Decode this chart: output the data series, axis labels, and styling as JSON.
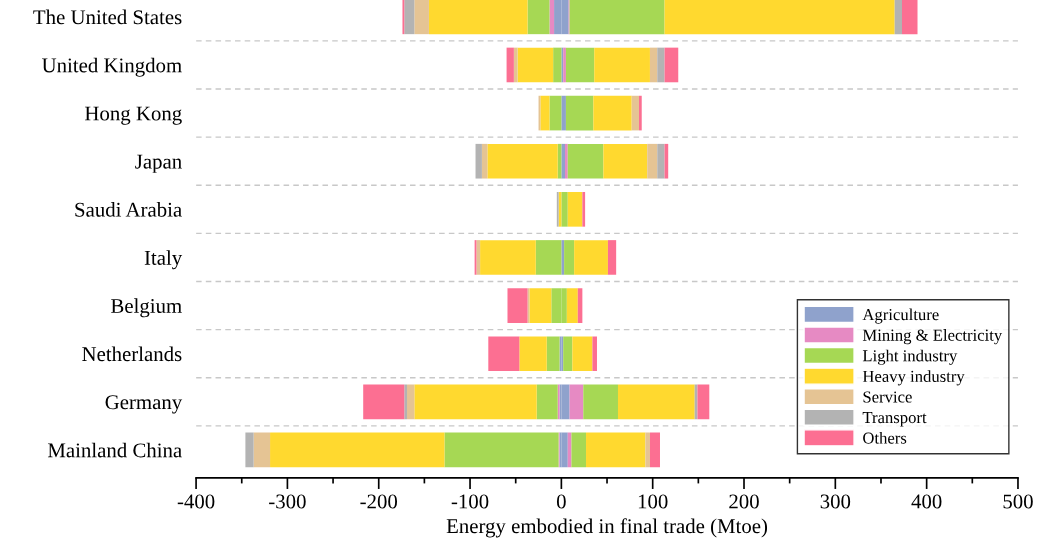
{
  "chart_data": {
    "type": "bar",
    "orientation": "horizontal",
    "stacked": true,
    "xlabel": "Energy embodied in final trade (Mtoe)",
    "categories": [
      "The United States",
      "United Kingdom",
      "Hong Kong",
      "Japan",
      "Saudi Arabia",
      "Italy",
      "Belgium",
      "Netherlands",
      "Germany",
      "Mainland China"
    ],
    "series": [
      {
        "name": "Agriculture",
        "color": "#8fa2cc",
        "values": [
          8,
          2,
          5,
          4,
          null,
          3,
          0,
          2,
          9,
          7
        ]
      },
      {
        "name": "Mining & Electricity",
        "color": "#e68ac3",
        "values": [
          1,
          3,
          0,
          3,
          0,
          0,
          0,
          0,
          15,
          4
        ]
      },
      {
        "name": "Light industry",
        "color": "#a6d854",
        "values": [
          104,
          31,
          30,
          39,
          7,
          11,
          6,
          10,
          38,
          16
        ]
      },
      {
        "name": "Heavy industry",
        "color": "#ffd92f",
        "values": [
          252,
          61,
          42,
          48,
          16,
          37,
          12,
          22,
          84,
          65
        ]
      },
      {
        "name": "Service",
        "color": "#e5c494",
        "values": [
          0,
          8,
          8,
          11,
          0,
          0,
          0,
          0,
          0,
          5
        ]
      },
      {
        "name": "Transport",
        "color": "#b3b3b3",
        "values": [
          8,
          8,
          0,
          8,
          0,
          0,
          0,
          0,
          3,
          0
        ]
      },
      {
        "name": "Others",
        "color": "#fc6f92",
        "values": [
          17,
          15,
          3,
          4,
          3,
          9,
          5,
          5,
          13,
          11
        ]
      },
      {
        "color": "#8fa2cc",
        "values": [
          -8,
          0,
          0,
          0,
          0,
          0,
          0,
          -2,
          -2,
          -2
        ]
      },
      {
        "color": "#e68ac3",
        "values": [
          -5,
          0,
          0,
          0,
          0,
          0,
          0,
          0,
          -2,
          -1
        ]
      },
      {
        "color": "#a6d854",
        "values": [
          -24,
          -9,
          -13,
          -4,
          0,
          -28,
          -11,
          -14,
          -23,
          -125
        ]
      },
      {
        "color": "#ffd92f",
        "values": [
          -108,
          -39,
          -10,
          -77,
          -3,
          -61,
          -24,
          -30,
          -134,
          -191
        ]
      },
      {
        "color": "#e5c494",
        "values": [
          -16,
          -4,
          -2,
          -6,
          0,
          -4,
          -2,
          0,
          -8,
          -18
        ]
      },
      {
        "color": "#b3b3b3",
        "values": [
          -11,
          0,
          null,
          -7,
          -2,
          0,
          0,
          null,
          -3,
          -9
        ]
      },
      {
        "color": "#fc6f92",
        "values": [
          -2,
          -8,
          0,
          0,
          0,
          -2,
          -22,
          -34,
          -45,
          0
        ]
      }
    ],
    "xlim": [
      -400,
      500
    ],
    "xticks": [
      -400,
      {
        "value": -350,
        "label": null
      },
      -300,
      {
        "value": -250,
        "label": null
      },
      -200,
      {
        "value": -150,
        "label": null
      },
      -100,
      {
        "value": -50,
        "label": null
      },
      0,
      {
        "value": 50,
        "label": null
      },
      100,
      {
        "value": 150,
        "label": null
      },
      200,
      {
        "value": 250,
        "label": null
      },
      300,
      {
        "value": 350,
        "label": null
      },
      400,
      {
        "value": 450,
        "label": null
      },
      500
    ],
    "grid": "y",
    "legend": "bottom right"
  }
}
